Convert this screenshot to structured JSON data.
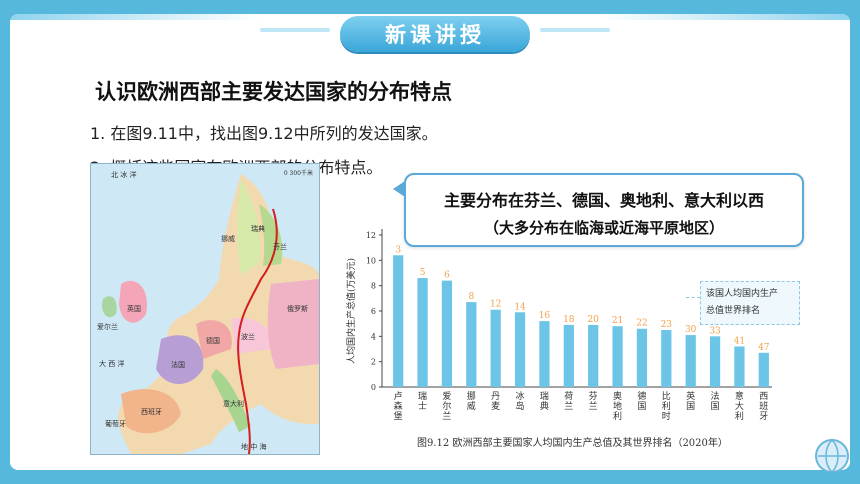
{
  "banner": {
    "title": "新课讲授"
  },
  "heading": "认识欧洲西部主要发达国家的分布特点",
  "steps": [
    "1. 在图9.11中，找出图9.12中所列的发达国家。",
    "2. 概括这些国家在欧洲西部的分布特点。"
  ],
  "callout": {
    "line1": "主要分布在芬兰、德国、奥地利、意大利以西",
    "line2": "（大多分布在临海或近海平原地区）"
  },
  "map": {
    "scale": "0    300千米",
    "labels": [
      "北 冰 洋",
      "挪威",
      "瑞典",
      "芬兰",
      "俄罗斯",
      "英国",
      "爱尔兰",
      "法国",
      "德国",
      "波兰",
      "西班牙",
      "意大利",
      "葡萄牙",
      "大 西 洋",
      "地 中 海"
    ]
  },
  "legend_box": {
    "line1": "该国人均国内生产",
    "line2": "总值世界排名"
  },
  "chart_data": {
    "type": "bar",
    "categories": [
      "卢森堡",
      "瑞士",
      "爱尔兰",
      "挪威",
      "丹麦",
      "冰岛",
      "瑞典",
      "荷兰",
      "芬兰",
      "奥地利",
      "德国",
      "比利时",
      "英国",
      "法国",
      "意大利",
      "西班牙"
    ],
    "category_labels": [
      "卢\n森\n堡",
      "瑞\n士",
      "爱\n尔\n兰",
      "挪\n威",
      "丹\n麦",
      "冰\n岛",
      "瑞\n典",
      "荷\n兰",
      "芬\n兰",
      "奥\n地\n利",
      "德\n国",
      "比\n利\n时",
      "英\n国",
      "法\n国",
      "意\n大\n利",
      "西\n班\n牙"
    ],
    "values": [
      10.4,
      8.6,
      8.4,
      6.7,
      6.1,
      5.9,
      5.2,
      4.9,
      4.9,
      4.8,
      4.6,
      4.5,
      4.1,
      4.0,
      3.2,
      2.7
    ],
    "rank_labels": [
      "3",
      "5",
      "6",
      "8",
      "12",
      "14",
      "16",
      "18",
      "20",
      "21",
      "22",
      "23",
      "30",
      "33",
      "41",
      "47"
    ],
    "ylabel": "人均国内生产总值(万美元)",
    "ylim": [
      0,
      12
    ],
    "yticks": [
      "0",
      "2",
      "4",
      "6",
      "8",
      "10",
      "12"
    ],
    "caption": "图9.12   欧洲西部主要国家人均国内生产总值及其世界排名（2020年）",
    "colors": {
      "bar": "#6cc5e6",
      "label": "#f0a04b",
      "axis": "#444444"
    }
  }
}
